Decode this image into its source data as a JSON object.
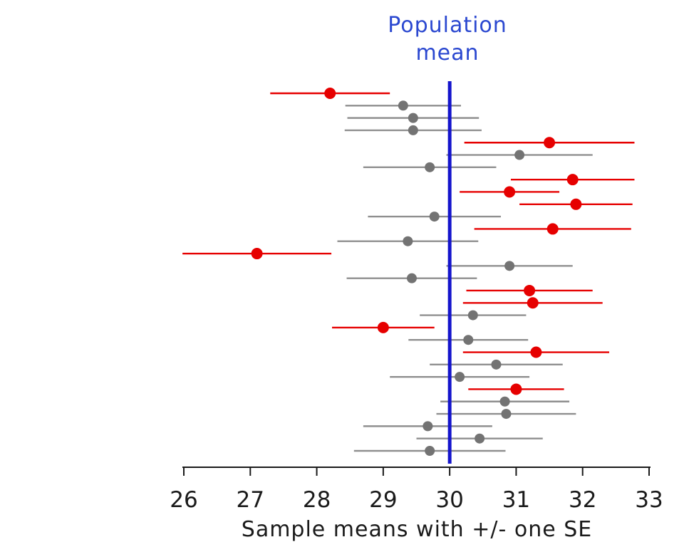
{
  "colors": {
    "miss_red": "#e60000",
    "contain_dot_gray": "#737373",
    "contain_line_gray": "#8f8f8f",
    "population_mean_line_blue": "#1414cc",
    "annotation_blue": "#2b48d0",
    "axis_black": "#1a1a1a"
  },
  "chart_data": {
    "type": "interval",
    "title": "Population mean",
    "annotation": {
      "line1": "Population",
      "line2": "mean"
    },
    "xlabel": "Sample means with +/- one SE",
    "xlim": [
      26,
      33
    ],
    "x_ticks": [
      "26",
      "27",
      "28",
      "29",
      "30",
      "31",
      "32",
      "33"
    ],
    "population_mean": 30,
    "grid": false,
    "legend_position": "none",
    "samples": [
      {
        "mean": 28.2,
        "se": 0.9,
        "color": "red"
      },
      {
        "mean": 29.3,
        "se": 0.87,
        "color": "gray"
      },
      {
        "mean": 29.45,
        "se": 0.99,
        "color": "gray"
      },
      {
        "mean": 29.45,
        "se": 1.03,
        "color": "gray"
      },
      {
        "mean": 31.5,
        "se": 1.28,
        "color": "red"
      },
      {
        "mean": 31.05,
        "se": 1.1,
        "color": "gray"
      },
      {
        "mean": 29.7,
        "se": 1.0,
        "color": "gray"
      },
      {
        "mean": 31.85,
        "se": 0.93,
        "color": "red"
      },
      {
        "mean": 30.9,
        "se": 0.75,
        "color": "red"
      },
      {
        "mean": 31.9,
        "se": 0.85,
        "color": "red"
      },
      {
        "mean": 29.77,
        "se": 1.0,
        "color": "gray"
      },
      {
        "mean": 31.55,
        "se": 1.18,
        "color": "red"
      },
      {
        "mean": 29.37,
        "se": 1.06,
        "color": "gray"
      },
      {
        "mean": 27.1,
        "se": 1.12,
        "color": "red"
      },
      {
        "mean": 30.9,
        "se": 0.95,
        "color": "gray"
      },
      {
        "mean": 29.43,
        "se": 0.98,
        "color": "gray"
      },
      {
        "mean": 31.2,
        "se": 0.95,
        "color": "red"
      },
      {
        "mean": 31.25,
        "se": 1.05,
        "color": "red"
      },
      {
        "mean": 30.35,
        "se": 0.8,
        "color": "gray"
      },
      {
        "mean": 29.0,
        "se": 0.77,
        "color": "red"
      },
      {
        "mean": 30.28,
        "se": 0.9,
        "color": "gray"
      },
      {
        "mean": 31.3,
        "se": 1.1,
        "color": "red"
      },
      {
        "mean": 30.7,
        "se": 1.0,
        "color": "gray"
      },
      {
        "mean": 30.15,
        "se": 1.05,
        "color": "gray"
      },
      {
        "mean": 31.0,
        "se": 0.72,
        "color": "red"
      },
      {
        "mean": 30.83,
        "se": 0.97,
        "color": "gray"
      },
      {
        "mean": 30.85,
        "se": 1.05,
        "color": "gray"
      },
      {
        "mean": 29.67,
        "se": 0.97,
        "color": "gray"
      },
      {
        "mean": 30.45,
        "se": 0.95,
        "color": "gray"
      },
      {
        "mean": 29.7,
        "se": 1.14,
        "color": "gray"
      }
    ]
  }
}
